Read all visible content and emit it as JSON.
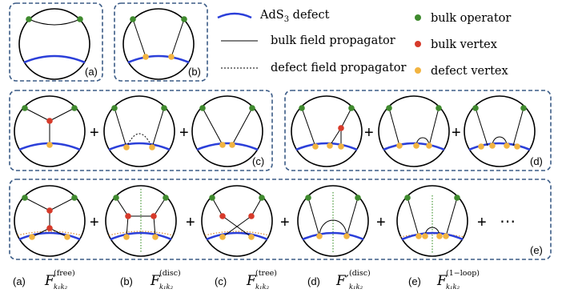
{
  "legend": {
    "defect": {
      "math": "AdS",
      "sub": "3",
      "text": "defect"
    },
    "bulk_prop": "bulk field propagator",
    "defect_prop": "defect field propagator",
    "bulk_op": "bulk operator",
    "bulk_vertex": "bulk vertex",
    "defect_vertex": "defect vertex"
  },
  "panel_labels": {
    "a": "(a)",
    "b": "(b)",
    "c": "(c)",
    "d": "(d)",
    "e": "(e)"
  },
  "plus": "+",
  "ellipsis": "⋯",
  "captions": [
    {
      "label": "(a)",
      "F": "F",
      "sub": "k₁k₂",
      "sup": "(free)"
    },
    {
      "label": "(b)",
      "F": "F",
      "sub": "k₁k₂",
      "sup": "(disc)"
    },
    {
      "label": "(c)",
      "F": "F",
      "sub": "k₁k₂",
      "sup": "(tree)"
    },
    {
      "label": "(d)",
      "F": "F′",
      "sub": "k₁k₂",
      "sup": "(disc)"
    },
    {
      "label": "(e)",
      "F": "F",
      "sub": "k₁k₂",
      "sup": "(1−loop)"
    }
  ],
  "colors": {
    "bulk_operator": "#3f8a2e",
    "bulk_vertex": "#d63a2a",
    "defect_vertex": "#f2b441",
    "defect_line": "#2b3fd9",
    "frame": "#3b5b86"
  }
}
